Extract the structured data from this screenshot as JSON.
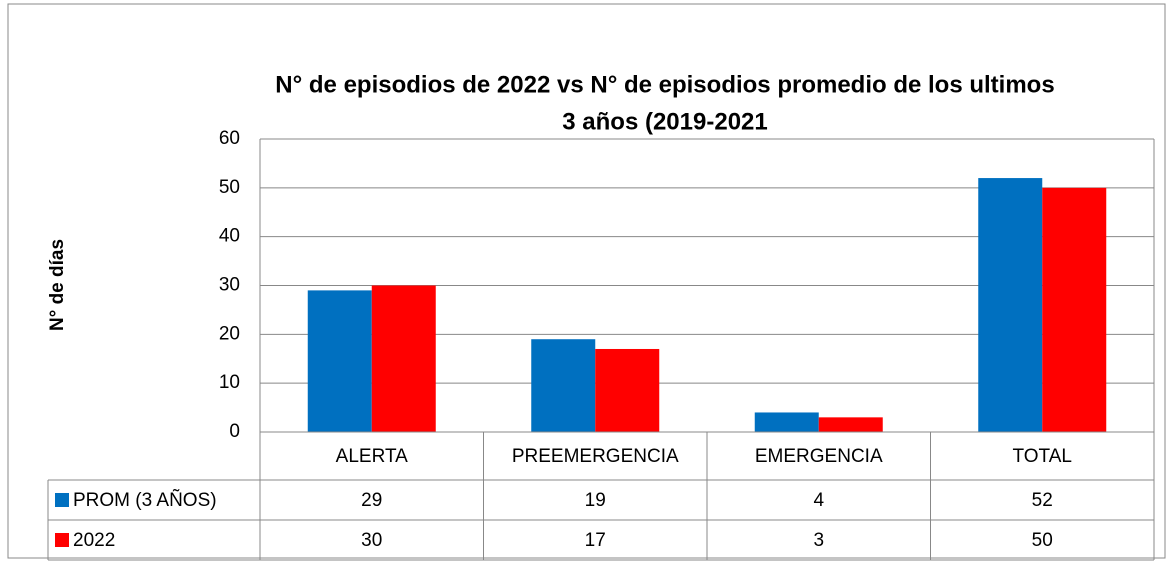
{
  "chart_data": {
    "type": "bar",
    "title": [
      "N° de episodios de 2022 vs  N° de episodios promedio de los ultimos",
      "3 años (2019-2021"
    ],
    "y_label": "N° de días",
    "categories": [
      "ALERTA",
      "PREEMERGENCIA",
      "EMERGENCIA",
      "TOTAL"
    ],
    "series": [
      {
        "name": "PROM (3 AÑOS)",
        "color": "#0070c0",
        "values": [
          29,
          19,
          4,
          52
        ]
      },
      {
        "name": "2022",
        "color": "#ff0000",
        "values": [
          30,
          17,
          3,
          50
        ]
      }
    ],
    "ylim": [
      0,
      60
    ],
    "yticks": [
      0,
      10,
      20,
      30,
      40,
      50,
      60
    ],
    "grid": true,
    "data_table": true
  }
}
